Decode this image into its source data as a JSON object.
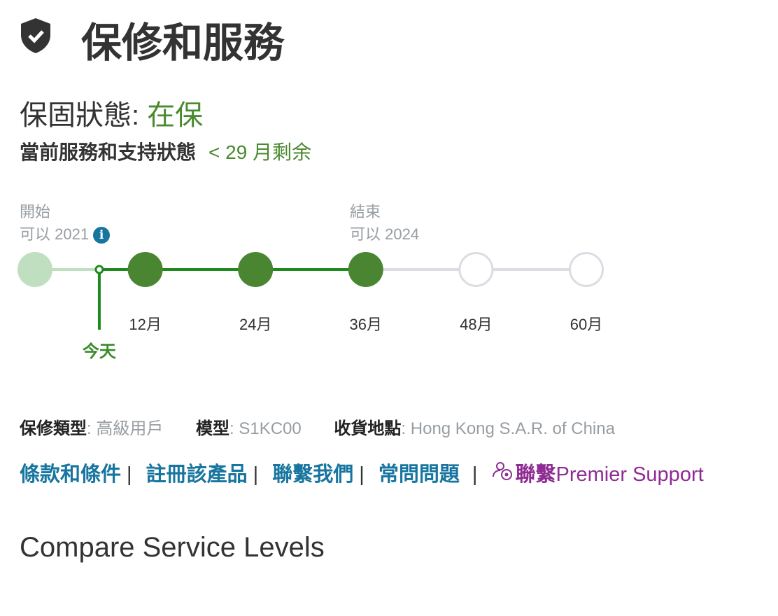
{
  "header": {
    "icon": "shield-check-icon",
    "title": "保修和服務"
  },
  "warranty_status": {
    "label": "保固狀態:",
    "value": "在保"
  },
  "service_status": {
    "label": "當前服務和支持狀態",
    "remaining": "< 29 月剩余"
  },
  "timeline": {
    "start_label": "開始",
    "start_date": "可以 2021",
    "end_label": "結束",
    "end_date": "可以 2024",
    "today_label": "今天",
    "today_month": 7,
    "end_month": 36,
    "milestones": [
      "12月",
      "24月",
      "36月",
      "48月",
      "60月"
    ],
    "colors": {
      "active": "#4a8632",
      "start": "#bfdfc0",
      "future": "#dcdde3",
      "today": "#1e8a1e"
    }
  },
  "meta": {
    "type_label": "保修類型",
    "type_value": "高級用戶",
    "model_label": "模型",
    "model_value": "S1KC00",
    "ship_label": "收貨地點",
    "ship_value": "Hong Kong S.A.R. of China"
  },
  "links": {
    "terms": "條款和條件",
    "register": "註冊該產品",
    "contact": "聯繫我們",
    "faq": "常問問題",
    "premier_prefix": "聯繫",
    "premier": "Premier Support",
    "premier_icon": "support-person-icon"
  },
  "compare": {
    "title": "Compare Service Levels"
  }
}
